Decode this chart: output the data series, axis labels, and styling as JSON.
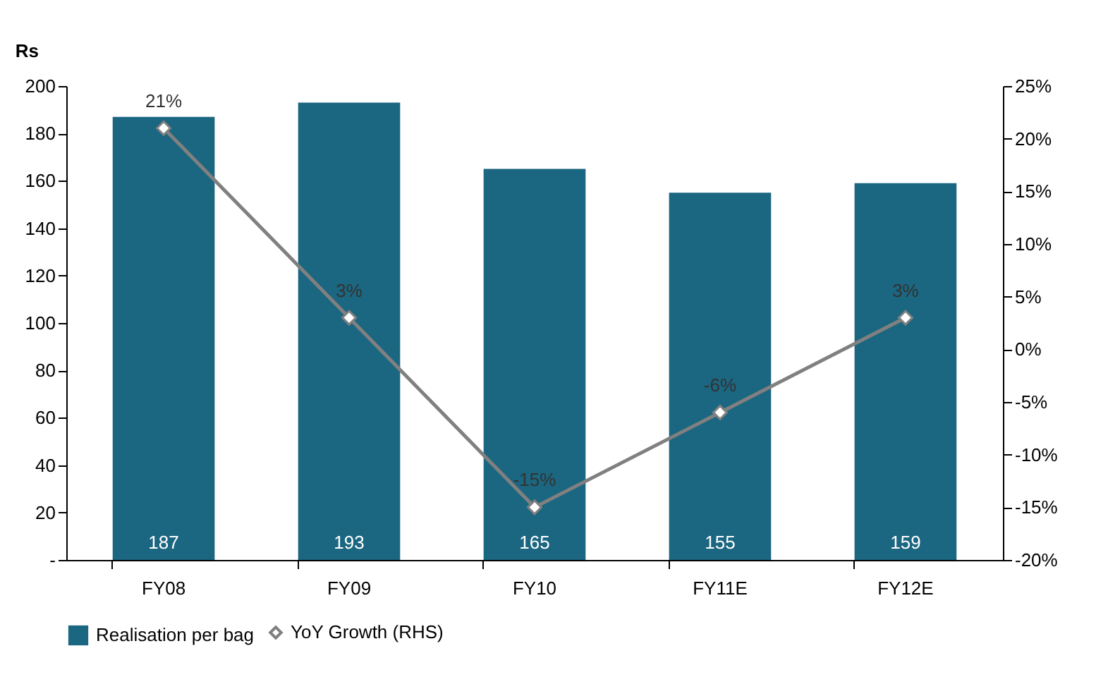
{
  "chart_data": {
    "type": "bar",
    "ylabel": "Rs",
    "categories": [
      "FY08",
      "FY09",
      "FY10",
      "FY11E",
      "FY12E"
    ],
    "series": [
      {
        "name": "Realisation per bag",
        "color": "#1b6680",
        "values": [
          187,
          193,
          165,
          155,
          159
        ],
        "value_labels": [
          "187",
          "193",
          "165",
          "155",
          "159"
        ]
      },
      {
        "name": "YoY Growth (RHS)",
        "type": "line",
        "axis": "y2",
        "color": "#808080",
        "marker": "diamond",
        "values": [
          21,
          3,
          -15,
          -6,
          3
        ],
        "value_labels": [
          "21%",
          "3%",
          "-15%",
          "-6%",
          "3%"
        ]
      }
    ],
    "ylim": [
      0,
      200
    ],
    "yticks": [
      {
        "value": 0,
        "label": "-"
      },
      20,
      40,
      60,
      80,
      100,
      120,
      140,
      160,
      180,
      200
    ],
    "y2lim": [
      -20,
      25
    ],
    "y2ticks": [
      {
        "value": -20,
        "label": "-20%"
      },
      {
        "value": -15,
        "label": "-15%"
      },
      {
        "value": -10,
        "label": "-10%"
      },
      {
        "value": -5,
        "label": "-5%"
      },
      {
        "value": 0,
        "label": "0%"
      },
      {
        "value": 5,
        "label": "5%"
      },
      {
        "value": 10,
        "label": "10%"
      },
      {
        "value": 15,
        "label": "15%"
      },
      {
        "value": 20,
        "label": "20%"
      },
      {
        "value": 25,
        "label": "25%"
      }
    ],
    "grid": false,
    "legend": "bottom"
  }
}
